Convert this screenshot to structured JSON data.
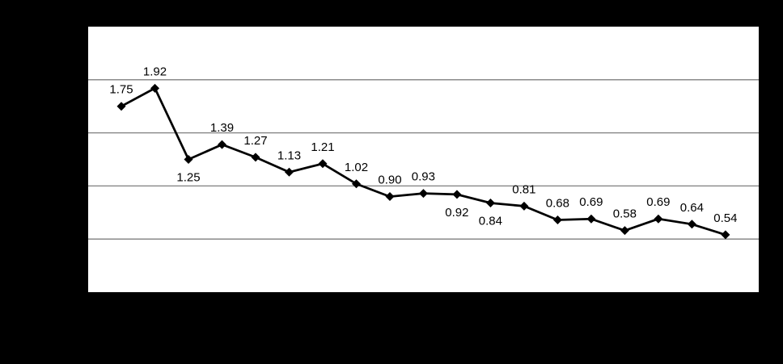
{
  "chart_data": {
    "type": "line",
    "title": "",
    "xlabel": "",
    "ylabel": "",
    "values": [
      1.75,
      1.92,
      1.25,
      1.39,
      1.27,
      1.13,
      1.21,
      1.02,
      0.9,
      0.93,
      0.92,
      0.84,
      0.81,
      0.68,
      0.69,
      0.58,
      0.69,
      0.64,
      0.54
    ],
    "data_labels": [
      "1.75",
      "1.92",
      "1.25",
      "1.39",
      "1.27",
      "1.13",
      "1.21",
      "1.02",
      "0.90",
      "0.93",
      "0.92",
      "0.84",
      "0.81",
      "0.68",
      "0.69",
      "0.58",
      "0.69",
      "0.64",
      "0.54"
    ],
    "label_positions": [
      "above",
      "above",
      "below",
      "above",
      "above",
      "above",
      "above",
      "above",
      "above",
      "above",
      "below",
      "below",
      "above",
      "above",
      "above",
      "above",
      "above",
      "above",
      "above"
    ],
    "ylim": [
      0,
      2.5
    ],
    "gridline_step": 0.5,
    "grid": true,
    "legend": "none",
    "marker": "diamond",
    "colors": {
      "line": "#000000",
      "marker": "#000000",
      "label": "#000000",
      "gridline": "#7f7f7f",
      "plot_background": "#ffffff",
      "page_background": "#000000"
    }
  }
}
